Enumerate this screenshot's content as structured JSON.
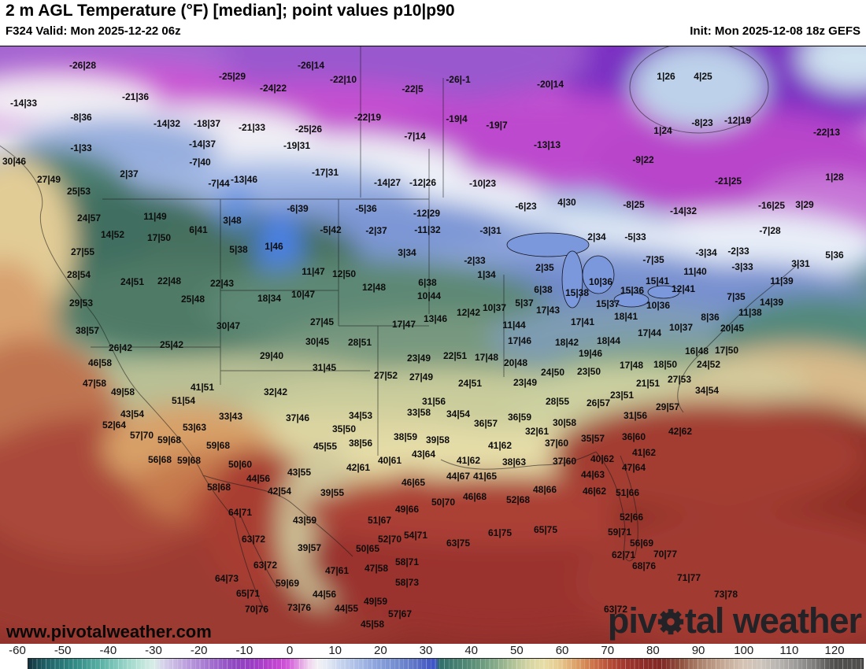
{
  "header": {
    "title": "2 m AGL Temperature (°F) [median]; point values p10|p90",
    "valid": "F324 Valid: Mon 2025-12-22 06z",
    "init": "Init: Mon 2025-12-08 18z GEFS"
  },
  "watermarks": {
    "site": "www.pivotalweather.com",
    "brand_left": "piv",
    "brand_right": "tal weather"
  },
  "colorbar": {
    "ticks": [
      -60,
      -50,
      -40,
      -30,
      -20,
      -10,
      0,
      10,
      20,
      30,
      40,
      50,
      60,
      70,
      80,
      90,
      100,
      110,
      120
    ],
    "stops": [
      [
        -60,
        "#14333e"
      ],
      [
        -54,
        "#1e6066"
      ],
      [
        -48,
        "#2f8783"
      ],
      [
        -42,
        "#58b0a4"
      ],
      [
        -37,
        "#8fd0c3"
      ],
      [
        -33,
        "#bce4d9"
      ],
      [
        -30,
        "#d8ece8"
      ],
      [
        -28,
        "#d6d2ea"
      ],
      [
        -24,
        "#c2aae0"
      ],
      [
        -20,
        "#ae86d6"
      ],
      [
        -16,
        "#9d64cb"
      ],
      [
        -12,
        "#8f46c0"
      ],
      [
        -8,
        "#9c3ec4"
      ],
      [
        -5,
        "#b440cc"
      ],
      [
        -2,
        "#c94ad4"
      ],
      [
        0,
        "#d562da"
      ],
      [
        2,
        "#e29ae2"
      ],
      [
        4,
        "#f0d0ee"
      ],
      [
        6,
        "#f2f0f4"
      ],
      [
        8,
        "#e6ebf4"
      ],
      [
        11,
        "#c9d5ee"
      ],
      [
        15,
        "#aabde6"
      ],
      [
        19,
        "#8da4dc"
      ],
      [
        23,
        "#7690d2"
      ],
      [
        27,
        "#6279c8"
      ],
      [
        30,
        "#4a5fc4"
      ],
      [
        32,
        "#3c54c8"
      ],
      [
        33,
        "#2f6f6c"
      ],
      [
        36,
        "#417c6f"
      ],
      [
        40,
        "#578d77"
      ],
      [
        44,
        "#79a484"
      ],
      [
        47,
        "#97b48e"
      ],
      [
        50,
        "#bac79a"
      ],
      [
        53,
        "#d8d6a4"
      ],
      [
        56,
        "#e7dda6"
      ],
      [
        59,
        "#e7cd92"
      ],
      [
        62,
        "#e0ad74"
      ],
      [
        65,
        "#d58b55"
      ],
      [
        68,
        "#c76743"
      ],
      [
        71,
        "#b44a36"
      ],
      [
        74,
        "#a1372e"
      ],
      [
        78,
        "#8e2c27"
      ],
      [
        82,
        "#812a25"
      ],
      [
        86,
        "#8f4f3d"
      ],
      [
        90,
        "#a97e68"
      ],
      [
        95,
        "#c3a591"
      ],
      [
        100,
        "#d5c3b3"
      ],
      [
        104,
        "#cdc5bd"
      ],
      [
        108,
        "#b7b3af"
      ],
      [
        112,
        "#9b9997"
      ],
      [
        116,
        "#7d7b79"
      ],
      [
        120,
        "#514f4d"
      ]
    ],
    "tick_x0": 22,
    "tick_dx_per_10deg": 57.67
  },
  "map": {
    "point_values": [
      [
        105,
        83,
        "-26|28"
      ],
      [
        30,
        131,
        "-14|33"
      ],
      [
        172,
        123,
        "-21|36"
      ],
      [
        103,
        149,
        "-8|36"
      ],
      [
        212,
        157,
        "-14|32"
      ],
      [
        263,
        157,
        "-18|37"
      ],
      [
        257,
        183,
        "-14|37"
      ],
      [
        254,
        206,
        "-7|40"
      ],
      [
        103,
        188,
        "-1|33"
      ],
      [
        18,
        205,
        "30|46"
      ],
      [
        62,
        228,
        "27|49"
      ],
      [
        164,
        221,
        "2|37"
      ],
      [
        100,
        243,
        "25|53"
      ],
      [
        295,
        97,
        "-25|29"
      ],
      [
        395,
        83,
        "-26|14"
      ],
      [
        347,
        112,
        "-24|22"
      ],
      [
        436,
        101,
        "-22|10"
      ],
      [
        524,
        113,
        "-22|5"
      ],
      [
        467,
        149,
        "-22|19"
      ],
      [
        527,
        173,
        "-7|14"
      ],
      [
        320,
        162,
        "-21|33"
      ],
      [
        392,
        164,
        "-25|26"
      ],
      [
        377,
        185,
        "-19|31"
      ],
      [
        413,
        219,
        "-17|31"
      ],
      [
        310,
        228,
        "-13|46"
      ],
      [
        492,
        232,
        "-14|27"
      ],
      [
        537,
        232,
        "-12|26"
      ],
      [
        278,
        233,
        "-7|44"
      ],
      [
        582,
        101,
        "-26|-1"
      ],
      [
        699,
        107,
        "-20|14"
      ],
      [
        580,
        151,
        "-19|4"
      ],
      [
        631,
        159,
        "-19|7"
      ],
      [
        695,
        184,
        "-13|13"
      ],
      [
        817,
        203,
        "-9|22"
      ],
      [
        613,
        233,
        "-10|23"
      ],
      [
        846,
        97,
        "1|26"
      ],
      [
        893,
        97,
        "4|25"
      ],
      [
        892,
        156,
        "-8|23"
      ],
      [
        937,
        153,
        "-12|19"
      ],
      [
        1050,
        168,
        "-22|13"
      ],
      [
        842,
        166,
        "1|24"
      ],
      [
        925,
        230,
        "-21|25"
      ],
      [
        1060,
        225,
        "1|28"
      ],
      [
        113,
        277,
        "24|57"
      ],
      [
        197,
        275,
        "11|49"
      ],
      [
        252,
        292,
        "6|41"
      ],
      [
        143,
        298,
        "14|52"
      ],
      [
        202,
        302,
        "17|50"
      ],
      [
        105,
        320,
        "27|55"
      ],
      [
        100,
        349,
        "28|54"
      ],
      [
        168,
        358,
        "24|51"
      ],
      [
        215,
        357,
        "22|48"
      ],
      [
        245,
        380,
        "25|48"
      ],
      [
        103,
        385,
        "29|53"
      ],
      [
        111,
        420,
        "38|57"
      ],
      [
        153,
        442,
        "26|42"
      ],
      [
        218,
        438,
        "25|42"
      ],
      [
        378,
        265,
        "-6|39"
      ],
      [
        465,
        265,
        "-5|36"
      ],
      [
        542,
        271,
        "-12|29"
      ],
      [
        295,
        280,
        "3|48"
      ],
      [
        420,
        292,
        "-5|42"
      ],
      [
        478,
        293,
        "-2|37"
      ],
      [
        543,
        292,
        "-11|32"
      ],
      [
        303,
        317,
        "5|38"
      ],
      [
        348,
        313,
        "1|46"
      ],
      [
        517,
        321,
        "3|34"
      ],
      [
        398,
        345,
        "11|47"
      ],
      [
        437,
        348,
        "12|50"
      ],
      [
        475,
        365,
        "12|48"
      ],
      [
        543,
        359,
        "6|38"
      ],
      [
        282,
        360,
        "22|43"
      ],
      [
        342,
        379,
        "18|34"
      ],
      [
        385,
        374,
        "10|47"
      ],
      [
        545,
        376,
        "10|44"
      ],
      [
        409,
        409,
        "27|45"
      ],
      [
        290,
        414,
        "30|47"
      ],
      [
        403,
        434,
        "30|45"
      ],
      [
        457,
        435,
        "28|51"
      ],
      [
        513,
        412,
        "17|47"
      ],
      [
        553,
        405,
        "13|46"
      ],
      [
        668,
        262,
        "-6|23"
      ],
      [
        720,
        257,
        "4|30"
      ],
      [
        805,
        260,
        "-8|25"
      ],
      [
        623,
        293,
        "-3|31"
      ],
      [
        758,
        301,
        "2|34"
      ],
      [
        807,
        301,
        "-5|33"
      ],
      [
        603,
        331,
        "-2|33"
      ],
      [
        618,
        349,
        "1|34"
      ],
      [
        692,
        340,
        "2|35"
      ],
      [
        763,
        358,
        "10|36"
      ],
      [
        690,
        368,
        "6|38"
      ],
      [
        733,
        372,
        "15|38"
      ],
      [
        803,
        369,
        "15|36"
      ],
      [
        666,
        385,
        "5|37"
      ],
      [
        772,
        386,
        "15|37"
      ],
      [
        628,
        391,
        "10|37"
      ],
      [
        696,
        394,
        "17|43"
      ],
      [
        795,
        402,
        "18|41"
      ],
      [
        595,
        397,
        "12|42"
      ],
      [
        653,
        413,
        "11|44"
      ],
      [
        740,
        409,
        "17|41"
      ],
      [
        660,
        433,
        "17|46"
      ],
      [
        720,
        435,
        "18|42"
      ],
      [
        773,
        433,
        "18|44"
      ],
      [
        868,
        268,
        "-14|32"
      ],
      [
        980,
        261,
        "-16|25"
      ],
      [
        1022,
        260,
        "3|29"
      ],
      [
        978,
        293,
        "-7|28"
      ],
      [
        897,
        321,
        "-3|34"
      ],
      [
        938,
        319,
        "-2|33"
      ],
      [
        1060,
        324,
        "5|36"
      ],
      [
        943,
        339,
        "-3|33"
      ],
      [
        1017,
        335,
        "3|31"
      ],
      [
        883,
        345,
        "11|40"
      ],
      [
        868,
        367,
        "12|41"
      ],
      [
        993,
        357,
        "11|39"
      ],
      [
        935,
        377,
        "7|35"
      ],
      [
        980,
        384,
        "14|39"
      ],
      [
        953,
        397,
        "11|38"
      ],
      [
        902,
        403,
        "8|36"
      ],
      [
        836,
        388,
        "10|36"
      ],
      [
        865,
        416,
        "10|37"
      ],
      [
        930,
        417,
        "20|45"
      ],
      [
        830,
        330,
        "-7|35"
      ],
      [
        835,
        357,
        "15|41"
      ],
      [
        825,
        423,
        "17|44"
      ],
      [
        127,
        461,
        "46|58"
      ],
      [
        120,
        487,
        "47|58"
      ],
      [
        156,
        498,
        "49|58"
      ],
      [
        168,
        526,
        "43|54"
      ],
      [
        145,
        540,
        "52|64"
      ],
      [
        180,
        553,
        "57|70"
      ],
      [
        215,
        559,
        "59|68"
      ],
      [
        203,
        584,
        "56|68"
      ],
      [
        240,
        585,
        "59|68"
      ],
      [
        277,
        566,
        "59|68"
      ],
      [
        257,
        492,
        "41|51"
      ],
      [
        233,
        509,
        "51|54"
      ],
      [
        247,
        543,
        "53|63"
      ],
      [
        278,
        619,
        "58|68"
      ],
      [
        345,
        452,
        "29|40"
      ],
      [
        412,
        467,
        "31|45"
      ],
      [
        532,
        455,
        "23|49"
      ],
      [
        490,
        477,
        "27|52"
      ],
      [
        535,
        479,
        "27|49"
      ],
      [
        350,
        498,
        "32|42"
      ],
      [
        378,
        531,
        "37|46"
      ],
      [
        458,
        528,
        "34|53"
      ],
      [
        532,
        524,
        "33|58"
      ],
      [
        551,
        510,
        "31|56"
      ],
      [
        293,
        529,
        "33|43"
      ],
      [
        437,
        545,
        "35|50"
      ],
      [
        458,
        563,
        "38|56"
      ],
      [
        515,
        555,
        "38|59"
      ],
      [
        413,
        567,
        "45|55"
      ],
      [
        538,
        577,
        "43|64"
      ],
      [
        495,
        585,
        "40|61"
      ],
      [
        455,
        594,
        "42|61"
      ],
      [
        305,
        590,
        "50|60"
      ],
      [
        328,
        608,
        "44|56"
      ],
      [
        380,
        600,
        "43|55"
      ],
      [
        525,
        613,
        "46|65"
      ],
      [
        355,
        624,
        "42|54"
      ],
      [
        422,
        626,
        "39|55"
      ],
      [
        578,
        452,
        "22|51"
      ],
      [
        618,
        454,
        "17|48"
      ],
      [
        655,
        461,
        "20|48"
      ],
      [
        750,
        449,
        "19|46"
      ],
      [
        802,
        464,
        "17|48"
      ],
      [
        702,
        473,
        "24|50"
      ],
      [
        748,
        472,
        "23|50"
      ],
      [
        597,
        487,
        "24|51"
      ],
      [
        667,
        486,
        "23|49"
      ],
      [
        823,
        487,
        "21|51"
      ],
      [
        790,
        502,
        "23|51"
      ],
      [
        708,
        510,
        "28|55"
      ],
      [
        760,
        512,
        "26|57"
      ],
      [
        582,
        526,
        "34|54"
      ],
      [
        660,
        530,
        "36|59"
      ],
      [
        807,
        528,
        "31|56"
      ],
      [
        617,
        538,
        "36|57"
      ],
      [
        717,
        537,
        "30|58"
      ],
      [
        682,
        548,
        "32|61"
      ],
      [
        753,
        557,
        "35|57"
      ],
      [
        805,
        555,
        "36|60"
      ],
      [
        635,
        566,
        "41|62"
      ],
      [
        707,
        563,
        "37|60"
      ],
      [
        818,
        575,
        "41|62"
      ],
      [
        595,
        585,
        "41|62"
      ],
      [
        653,
        587,
        "38|63"
      ],
      [
        717,
        586,
        "37|60"
      ],
      [
        765,
        583,
        "40|62"
      ],
      [
        805,
        594,
        "47|64"
      ],
      [
        582,
        605,
        "44|67"
      ],
      [
        616,
        605,
        "41|65"
      ],
      [
        753,
        603,
        "44|63"
      ],
      [
        692,
        622,
        "48|66"
      ],
      [
        755,
        624,
        "46|62"
      ],
      [
        797,
        626,
        "51|66"
      ],
      [
        603,
        631,
        "46|68"
      ],
      [
        556,
        559,
        "39|58"
      ],
      [
        885,
        446,
        "16|48"
      ],
      [
        923,
        445,
        "17|50"
      ],
      [
        845,
        463,
        "18|50"
      ],
      [
        900,
        463,
        "24|52"
      ],
      [
        863,
        482,
        "27|53"
      ],
      [
        898,
        496,
        "34|54"
      ],
      [
        848,
        517,
        "29|57"
      ],
      [
        864,
        548,
        "42|62"
      ],
      [
        305,
        651,
        "64|71"
      ],
      [
        387,
        661,
        "43|59"
      ],
      [
        517,
        647,
        "49|66"
      ],
      [
        482,
        661,
        "51|67"
      ],
      [
        322,
        685,
        "63|72"
      ],
      [
        528,
        680,
        "54|71"
      ],
      [
        495,
        685,
        "52|70"
      ],
      [
        393,
        696,
        "39|57"
      ],
      [
        467,
        697,
        "50|65"
      ],
      [
        337,
        718,
        "63|72"
      ],
      [
        517,
        714,
        "58|71"
      ],
      [
        428,
        725,
        "47|61"
      ],
      [
        478,
        722,
        "47|58"
      ],
      [
        288,
        735,
        "64|73"
      ],
      [
        365,
        741,
        "59|69"
      ],
      [
        517,
        740,
        "58|73"
      ],
      [
        315,
        754,
        "65|71"
      ],
      [
        412,
        755,
        "44|56"
      ],
      [
        477,
        764,
        "49|59"
      ],
      [
        326,
        774,
        "70|76"
      ],
      [
        380,
        772,
        "73|76"
      ],
      [
        440,
        773,
        "44|55"
      ],
      [
        508,
        780,
        "57|67"
      ],
      [
        473,
        793,
        "45|58"
      ],
      [
        563,
        638,
        "50|70"
      ],
      [
        658,
        635,
        "52|68"
      ],
      [
        802,
        657,
        "52|66"
      ],
      [
        635,
        677,
        "61|75"
      ],
      [
        693,
        673,
        "65|75"
      ],
      [
        787,
        676,
        "59|71"
      ],
      [
        582,
        690,
        "63|75"
      ],
      [
        815,
        690,
        "56|69"
      ],
      [
        792,
        705,
        "62|71"
      ],
      [
        818,
        719,
        "68|76"
      ],
      [
        782,
        774,
        "63|72"
      ],
      [
        845,
        704,
        "70|77"
      ],
      [
        875,
        734,
        "71|77"
      ],
      [
        922,
        755,
        "73|78"
      ]
    ]
  }
}
